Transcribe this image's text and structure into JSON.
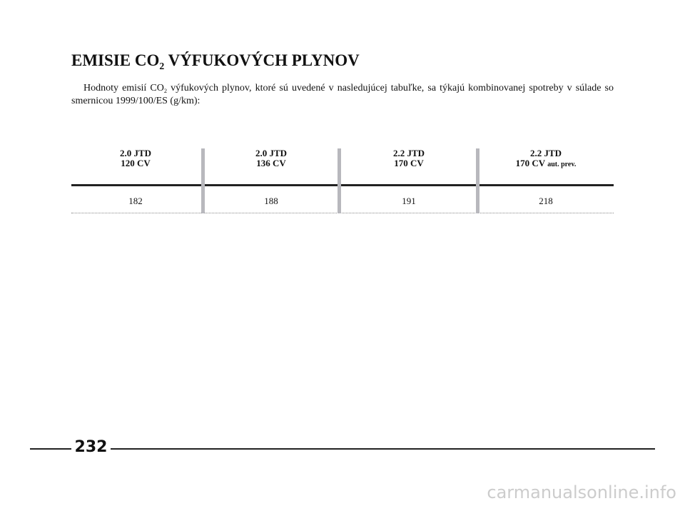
{
  "header": {
    "title": {
      "before": "EMISIE CO",
      "sub": "2",
      "after": " VÝFUKOVÝCH PLYNOV"
    }
  },
  "intro": {
    "before": "Hodnoty emisií CO",
    "sub": "2",
    "after": " výfukových plynov, ktoré sú uvedené v nasledujúcej tabuľke, sa týkajú kombinovanej spotreby v súlade so smernicou 1999/100/ES (g/km):"
  },
  "table": {
    "columns": [
      {
        "line1": "2.0 JTD",
        "line2": "120 CV"
      },
      {
        "line1": "2.0 JTD",
        "line2": "136 CV"
      },
      {
        "line1": "2.2 JTD",
        "line2": "170 CV"
      },
      {
        "line1": "2.2 JTD",
        "line2": "170 CV",
        "note": "aut. prev."
      }
    ],
    "rows": [
      [
        182,
        188,
        191,
        218
      ]
    ]
  },
  "footer": {
    "page_number": 232,
    "watermark": "carmanualsonline.info"
  }
}
